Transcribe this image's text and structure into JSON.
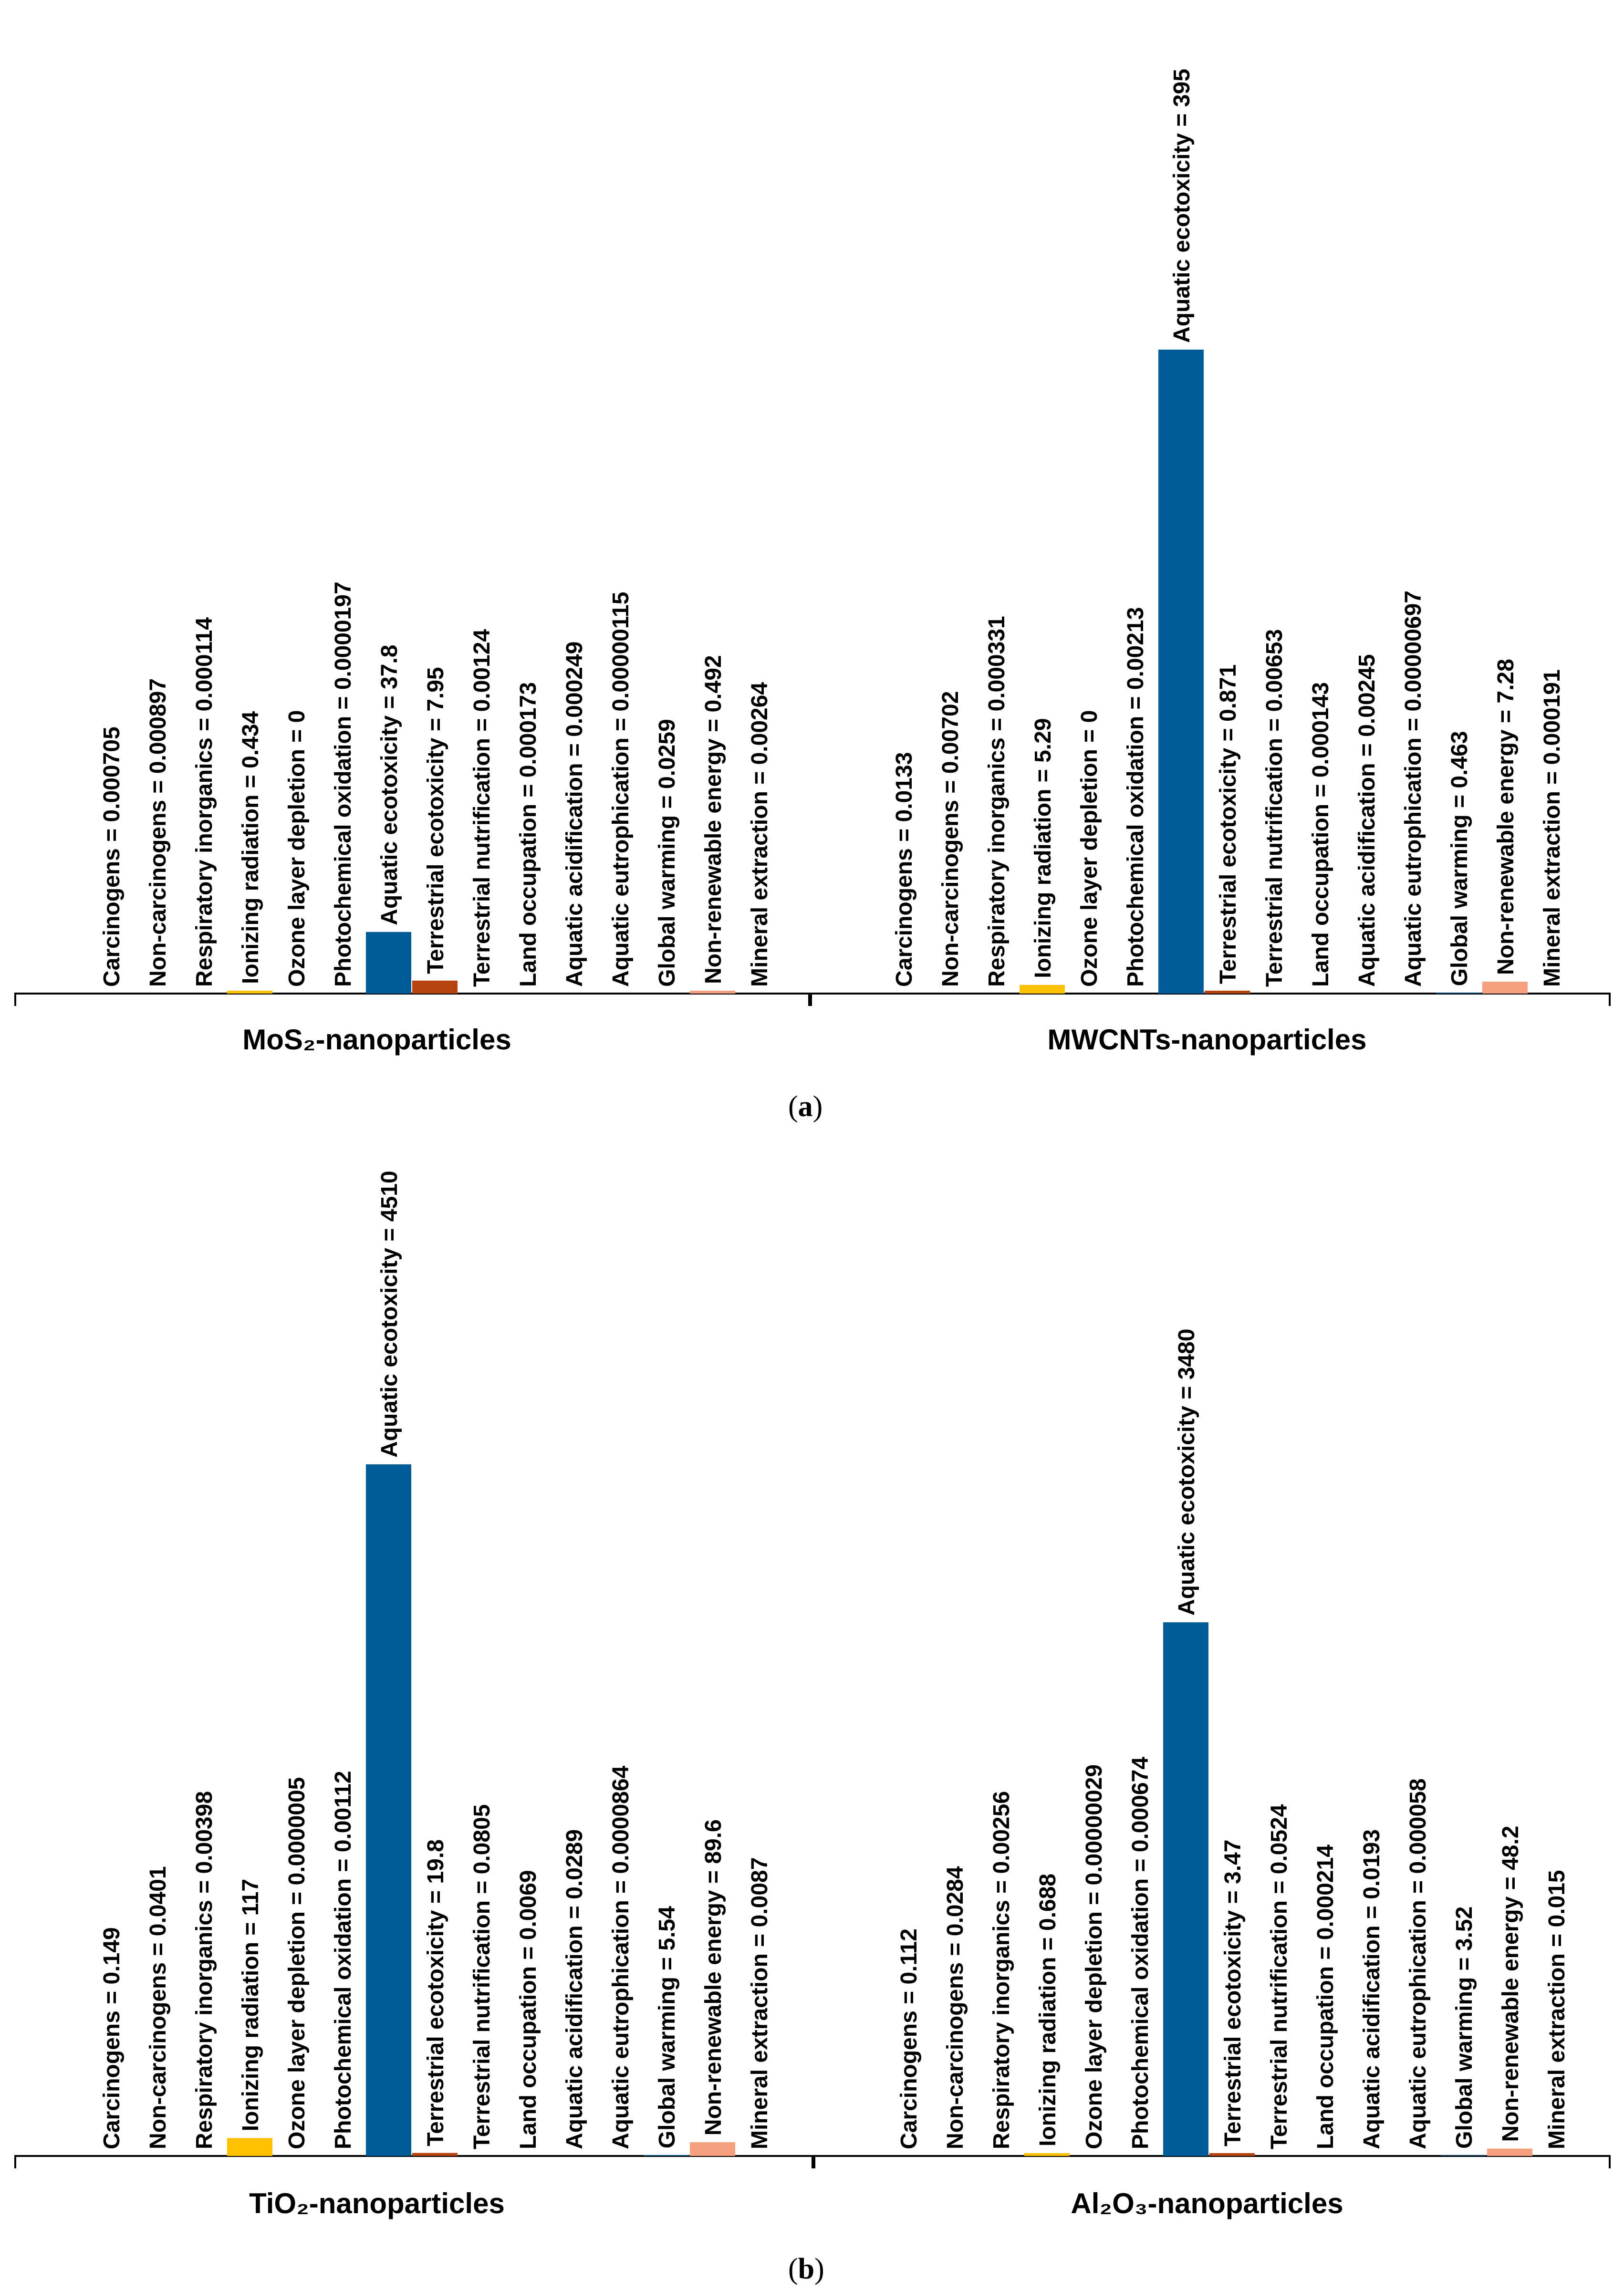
{
  "panel_a_label": "a",
  "panel_b_label": "b",
  "colors": {
    "aquatic_ecotoxicity": "#005B96",
    "terrestrial_ecotoxicity_mos2": "#B5420F",
    "ionizing_radiation": "#FFC000",
    "non_renewable_energy": "#F4A07E",
    "axis": "#000000",
    "text": "#000000"
  },
  "chart_data": [
    {
      "type": "bar",
      "title": "MoS₂-nanoparticles",
      "categories": [
        "Carcinogens",
        "Non-carcinogens",
        "Respiratory inorganics",
        "Ionizing radiation",
        "Ozone layer depletion",
        "Photochemical oxidation",
        "Aquatic ecotoxicity",
        "Terrestrial ecotoxicity",
        "Terrestrial nutrification",
        "Land occupation",
        "Aquatic acidification",
        "Aquatic eutrophication",
        "Global warming",
        "Non-renewable energy",
        "Mineral extraction"
      ],
      "labels": [
        "Carcinogens =  0.000705",
        "Non-carcinogens = 0.000897",
        "Respiratory inorganics = 0.000114",
        "Ionizing radiation = 0.434",
        "Ozone layer depletion = 0",
        "Photochemical oxidation = 0.0000197",
        "Aquatic ecotoxicity = 37.8",
        "Terrestrial ecotoxicity = 7.95",
        "Terrestrial nutrification = 0.00124",
        "Land occupation = 0.000173",
        "Aquatic acidification = 0.000249",
        "Aquatic eutrophication = 0.00000115",
        "Global warming = 0.0259",
        "Non-renewable energy = 0.492",
        "Mineral extraction = 0.00264"
      ],
      "values": [
        0.000705,
        0.000897,
        0.000114,
        0.434,
        0,
        1.97e-05,
        37.8,
        7.95,
        0.00124,
        0.000173,
        0.000249,
        1.15e-06,
        0.0259,
        0.492,
        0.00264
      ],
      "ylim": [
        0,
        395
      ]
    },
    {
      "type": "bar",
      "title": "MWCNTs-nanoparticles",
      "categories": [
        "Carcinogens",
        "Non-carcinogens",
        "Respiratory inorganics",
        "Ionizing radiation",
        "Ozone layer depletion",
        "Photochemical oxidation",
        "Aquatic ecotoxicity",
        "Terrestrial ecotoxicity",
        "Terrestrial nutrification",
        "Land occupation",
        "Aquatic acidification",
        "Aquatic eutrophication",
        "Global warming",
        "Non-renewable energy",
        "Mineral extraction"
      ],
      "labels": [
        "Carcinogens =  0.0133",
        "Non-carcinogens = 0.00702",
        "Respiratory inorganics = 0.000331",
        "Ionizing radiation = 5.29",
        "Ozone layer depletion = 0",
        "Photochemical oxidation = 0.00213",
        "Aquatic ecotoxicity = 395",
        "Terrestrial ecotoxicity = 0.871",
        "Terrestrial nutrification = 0.00653",
        "Land occupation = 0.000143",
        "Aquatic acidification = 0.00245",
        "Aquatic eutrophication = 0.00000697",
        "Global warming = 0.463",
        "Non-renewable energy = 7.28",
        "Mineral extraction = 0.000191"
      ],
      "values": [
        0.0133,
        0.00702,
        0.000331,
        5.29,
        0,
        0.00213,
        395,
        0.871,
        0.00653,
        0.000143,
        0.00245,
        6.97e-06,
        0.463,
        7.28,
        0.000191
      ],
      "ylim": [
        0,
        395
      ]
    },
    {
      "type": "bar",
      "title": "TiO₂-nanoparticles",
      "categories": [
        "Carcinogens",
        "Non-carcinogens",
        "Respiratory inorganics",
        "Ionizing radiation",
        "Ozone layer depletion",
        "Photochemical oxidation",
        "Aquatic ecotoxicity",
        "Terrestrial ecotoxicity",
        "Terrestrial nutrification",
        "Land occupation",
        "Aquatic acidification",
        "Aquatic eutrophication",
        "Global warming",
        "Non-renewable energy",
        "Mineral extraction"
      ],
      "labels": [
        "Carcinogens =  0.149",
        "Non-carcinogens = 0.0401",
        "Respiratory inorganics = 0.00398",
        "Ionizing radiation = 117",
        "Ozone layer depletion = 0.0000005",
        "Photochemical oxidation = 0.00112",
        "Aquatic ecotoxicity = 4510",
        "Terrestrial ecotoxicity = 19.8",
        "Terrestrial nutrification = 0.0805",
        "Land occupation = 0.0069",
        "Aquatic acidification = 0.0289",
        "Aquatic eutrophication = 0.0000864",
        "Global warming = 5.54",
        "Non-renewable energy = 89.6",
        "Mineral extraction = 0.0087"
      ],
      "values": [
        0.149,
        0.0401,
        0.00398,
        117,
        5e-07,
        0.00112,
        4510,
        19.8,
        0.0805,
        0.0069,
        0.0289,
        8.64e-05,
        5.54,
        89.6,
        0.0087
      ],
      "ylim": [
        0,
        4510
      ]
    },
    {
      "type": "bar",
      "title": "Al₂O₃-nanoparticles",
      "categories": [
        "Carcinogens",
        "Non-carcinogens",
        "Respiratory inorganics",
        "Ionizing radiation",
        "Ozone layer depletion",
        "Photochemical oxidation",
        "Aquatic ecotoxicity",
        "Terrestrial ecotoxicity",
        "Terrestrial nutrification",
        "Land occupation",
        "Aquatic acidification",
        "Aquatic eutrophication",
        "Global warming",
        "Non-renewable energy",
        "Mineral extraction"
      ],
      "labels": [
        "Carcinogens =  0.112",
        "Non-carcinogens = 0.0284",
        "Respiratory inorganics = 0.00256",
        "Ionizing radiation = 0.688",
        "Ozone layer depletion = 0.00000029",
        "Photochemical oxidation = 0.000674",
        "Aquatic ecotoxicity = 3480",
        "Terrestrial ecotoxicity = 3.47",
        "Terrestrial nutrification = 0.0524",
        "Land occupation = 0.000214",
        "Aquatic acidification = 0.0193",
        "Aquatic eutrophication = 0.000058",
        "Global warming = 3.52",
        "Non-renewable energy = 48.2",
        "Mineral extraction = 0.015"
      ],
      "values": [
        0.112,
        0.0284,
        0.00256,
        0.688,
        2.9e-07,
        0.000674,
        3480,
        3.47,
        0.0524,
        0.000214,
        0.0193,
        5.8e-05,
        3.52,
        48.2,
        0.015
      ],
      "ylim": [
        0,
        4510
      ]
    }
  ]
}
